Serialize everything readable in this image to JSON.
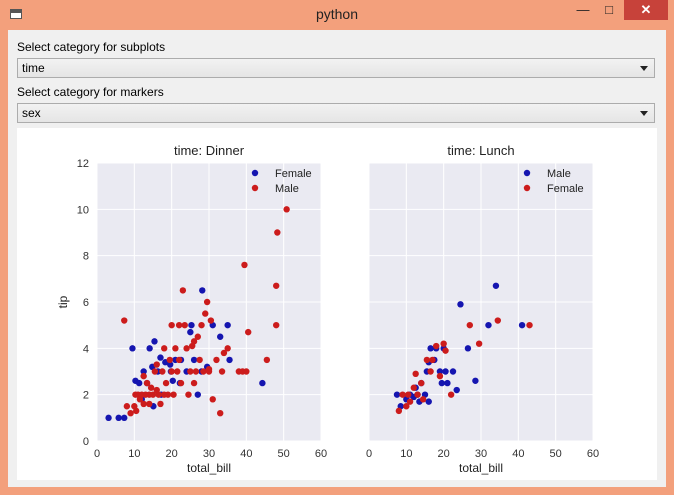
{
  "window": {
    "title": "python"
  },
  "controls": {
    "subplot_label": "Select category for subplots",
    "subplot_value": "time",
    "marker_label": "Select category for markers",
    "marker_value": "sex"
  },
  "colors": {
    "female": "#cc1c1c",
    "male": "#1515b0",
    "dinner_female": "#1515b0",
    "dinner_male": "#cc1c1c"
  },
  "chart_data": [
    {
      "type": "scatter",
      "title": "time: Dinner",
      "xlabel": "total_bill",
      "ylabel": "tip",
      "xlim": [
        0,
        60
      ],
      "ylim": [
        0,
        12
      ],
      "xticks": [
        0,
        10,
        20,
        30,
        40,
        50,
        60
      ],
      "yticks": [
        0,
        2,
        4,
        6,
        8,
        10,
        12
      ],
      "grid": true,
      "legend_position": "top-right",
      "series": [
        {
          "name": "Female",
          "color": "#1515b0",
          "points": [
            [
              3.1,
              1.0
            ],
            [
              5.8,
              1.0
            ],
            [
              7.3,
              1.0
            ],
            [
              9.5,
              4.0
            ],
            [
              10.3,
              2.6
            ],
            [
              11.3,
              2.5
            ],
            [
              12.5,
              3.0
            ],
            [
              13.4,
              2.5
            ],
            [
              14.1,
              4.0
            ],
            [
              14.8,
              3.2
            ],
            [
              15.4,
              4.3
            ],
            [
              16.3,
              3.0
            ],
            [
              17.2,
              2.0
            ],
            [
              18.3,
              3.4
            ],
            [
              19.8,
              3.0
            ],
            [
              20.3,
              2.6
            ],
            [
              21.0,
              3.5
            ],
            [
              22.5,
              3.5
            ],
            [
              24.0,
              3.0
            ],
            [
              25.0,
              4.7
            ],
            [
              25.3,
              5.0
            ],
            [
              26.0,
              3.5
            ],
            [
              27.0,
              2.0
            ],
            [
              28.0,
              3.0
            ],
            [
              28.2,
              6.5
            ],
            [
              29.5,
              3.2
            ],
            [
              31.0,
              5.0
            ],
            [
              33.0,
              4.5
            ],
            [
              35.0,
              5.0
            ],
            [
              35.5,
              3.5
            ],
            [
              44.3,
              2.5
            ],
            [
              15.1,
              1.5
            ],
            [
              12.0,
              1.8
            ],
            [
              19.6,
              3.3
            ],
            [
              22.2,
              2.5
            ],
            [
              17.0,
              3.6
            ]
          ]
        },
        {
          "name": "Male",
          "color": "#cc1c1c",
          "points": [
            [
              7.3,
              5.2
            ],
            [
              8.0,
              1.5
            ],
            [
              9.0,
              1.2
            ],
            [
              10.0,
              1.5
            ],
            [
              10.3,
              2.0
            ],
            [
              10.5,
              1.3
            ],
            [
              11.0,
              2.0
            ],
            [
              11.5,
              1.8
            ],
            [
              12.0,
              2.0
            ],
            [
              12.5,
              1.6
            ],
            [
              13.0,
              2.0
            ],
            [
              13.4,
              2.5
            ],
            [
              14.0,
              2.0
            ],
            [
              14.5,
              2.3
            ],
            [
              15.0,
              2.0
            ],
            [
              15.5,
              3.0
            ],
            [
              16.0,
              2.2
            ],
            [
              16.5,
              2.0
            ],
            [
              17.0,
              1.6
            ],
            [
              17.5,
              3.0
            ],
            [
              18.0,
              2.0
            ],
            [
              18.5,
              2.5
            ],
            [
              19.0,
              2.0
            ],
            [
              19.5,
              3.5
            ],
            [
              20.0,
              3.0
            ],
            [
              20.5,
              2.0
            ],
            [
              21.0,
              4.0
            ],
            [
              21.5,
              3.0
            ],
            [
              22.0,
              3.5
            ],
            [
              22.5,
              2.5
            ],
            [
              23.0,
              6.5
            ],
            [
              23.5,
              5.0
            ],
            [
              24.0,
              4.0
            ],
            [
              24.5,
              2.0
            ],
            [
              25.0,
              3.0
            ],
            [
              25.5,
              4.1
            ],
            [
              26.0,
              2.5
            ],
            [
              26.5,
              3.0
            ],
            [
              27.0,
              4.5
            ],
            [
              27.5,
              3.5
            ],
            [
              28.0,
              5.0
            ],
            [
              28.5,
              3.0
            ],
            [
              29.0,
              5.5
            ],
            [
              29.5,
              6.0
            ],
            [
              30.0,
              3.0
            ],
            [
              30.5,
              5.2
            ],
            [
              31.0,
              1.8
            ],
            [
              32.0,
              3.5
            ],
            [
              33.0,
              1.2
            ],
            [
              33.5,
              3.0
            ],
            [
              34.0,
              3.8
            ],
            [
              35.0,
              4.0
            ],
            [
              38.0,
              3.0
            ],
            [
              39.0,
              3.0
            ],
            [
              39.5,
              7.6
            ],
            [
              40.0,
              3.0
            ],
            [
              40.5,
              4.7
            ],
            [
              45.5,
              3.5
            ],
            [
              48.0,
              5.0
            ],
            [
              48.0,
              6.7
            ],
            [
              48.3,
              9.0
            ],
            [
              50.8,
              10.0
            ],
            [
              20.0,
              5.0
            ],
            [
              22.0,
              5.0
            ],
            [
              26.0,
              4.3
            ],
            [
              30.0,
              3.1
            ],
            [
              18.0,
              4.0
            ],
            [
              16.0,
              3.3
            ],
            [
              12.5,
              2.8
            ],
            [
              14.0,
              1.6
            ]
          ]
        }
      ]
    },
    {
      "type": "scatter",
      "title": "time: Lunch",
      "xlabel": "total_bill",
      "ylabel": "",
      "xlim": [
        0,
        60
      ],
      "ylim": [
        0,
        12
      ],
      "xticks": [
        0,
        10,
        20,
        30,
        40,
        50,
        60
      ],
      "grid": true,
      "legend_position": "top-right",
      "series": [
        {
          "name": "Male",
          "color": "#1515b0",
          "points": [
            [
              7.5,
              2.0
            ],
            [
              8.5,
              1.5
            ],
            [
              10.0,
              1.8
            ],
            [
              11.0,
              2.0
            ],
            [
              12.0,
              1.9
            ],
            [
              13.0,
              2.0
            ],
            [
              13.5,
              1.7
            ],
            [
              14.0,
              2.5
            ],
            [
              15.0,
              2.0
            ],
            [
              15.5,
              3.0
            ],
            [
              16.0,
              3.4
            ],
            [
              16.5,
              4.0
            ],
            [
              17.5,
              3.5
            ],
            [
              18.0,
              4.0
            ],
            [
              19.0,
              3.0
            ],
            [
              19.5,
              2.5
            ],
            [
              20.0,
              4.0
            ],
            [
              20.5,
              3.0
            ],
            [
              21.0,
              2.5
            ],
            [
              22.5,
              3.0
            ],
            [
              23.5,
              2.2
            ],
            [
              24.5,
              5.9
            ],
            [
              26.5,
              4.0
            ],
            [
              28.5,
              2.6
            ],
            [
              32.0,
              5.0
            ],
            [
              34.0,
              6.7
            ],
            [
              41.0,
              5.0
            ],
            [
              12.5,
              2.3
            ],
            [
              16.0,
              1.7
            ]
          ]
        },
        {
          "name": "Female",
          "color": "#cc1c1c",
          "points": [
            [
              8.0,
              1.3
            ],
            [
              9.0,
              2.0
            ],
            [
              10.0,
              1.5
            ],
            [
              11.0,
              1.7
            ],
            [
              12.0,
              2.3
            ],
            [
              12.5,
              2.9
            ],
            [
              13.0,
              2.0
            ],
            [
              14.0,
              2.5
            ],
            [
              15.5,
              3.5
            ],
            [
              16.5,
              3.0
            ],
            [
              17.0,
              3.5
            ],
            [
              18.0,
              4.1
            ],
            [
              19.0,
              2.8
            ],
            [
              20.0,
              4.2
            ],
            [
              20.5,
              3.9
            ],
            [
              22.0,
              2.0
            ],
            [
              27.0,
              5.0
            ],
            [
              29.5,
              4.2
            ],
            [
              34.5,
              5.2
            ],
            [
              43.0,
              5.0
            ],
            [
              10.5,
              2.0
            ],
            [
              14.5,
              1.8
            ]
          ]
        }
      ]
    }
  ]
}
